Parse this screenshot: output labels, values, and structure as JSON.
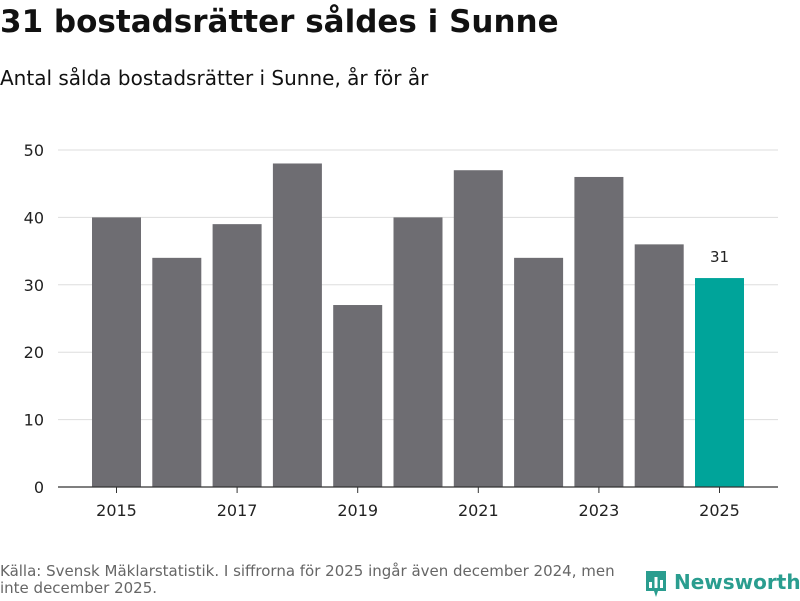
{
  "title": "31 bostadsrätter såldes i Sunne",
  "subtitle": "Antal sålda bostadsrätter i Sunne, år för år",
  "source": "Källa: Svensk Mäklarstatistik. I siffrorna för 2025 ingår även december 2024, men inte december 2025.",
  "brand": {
    "name": "Newsworthy",
    "icon": "newsworthy-logo-icon"
  },
  "colors": {
    "bar": "#6e6d72",
    "highlight": "#00a49a",
    "grid": "#dddddd",
    "axis": "#333333",
    "brand": "#2a9d8f"
  },
  "chart_data": {
    "type": "bar",
    "title": "31 bostadsrätter såldes i Sunne",
    "subtitle": "Antal sålda bostadsrätter i Sunne, år för år",
    "xlabel": "",
    "ylabel": "",
    "categories": [
      "2015",
      "2016",
      "2017",
      "2018",
      "2019",
      "2020",
      "2021",
      "2022",
      "2023",
      "2024",
      "2025"
    ],
    "values": [
      40,
      34,
      39,
      48,
      27,
      40,
      47,
      34,
      46,
      36,
      31
    ],
    "highlight_index": 10,
    "data_labels": [
      {
        "index": 10,
        "text": "31"
      }
    ],
    "x_tick_labels": [
      "2015",
      "2017",
      "2019",
      "2021",
      "2023",
      "2025"
    ],
    "y_ticks": [
      0,
      10,
      20,
      30,
      40,
      50
    ],
    "ylim": [
      0,
      50
    ],
    "grid": true,
    "legend": "none"
  }
}
